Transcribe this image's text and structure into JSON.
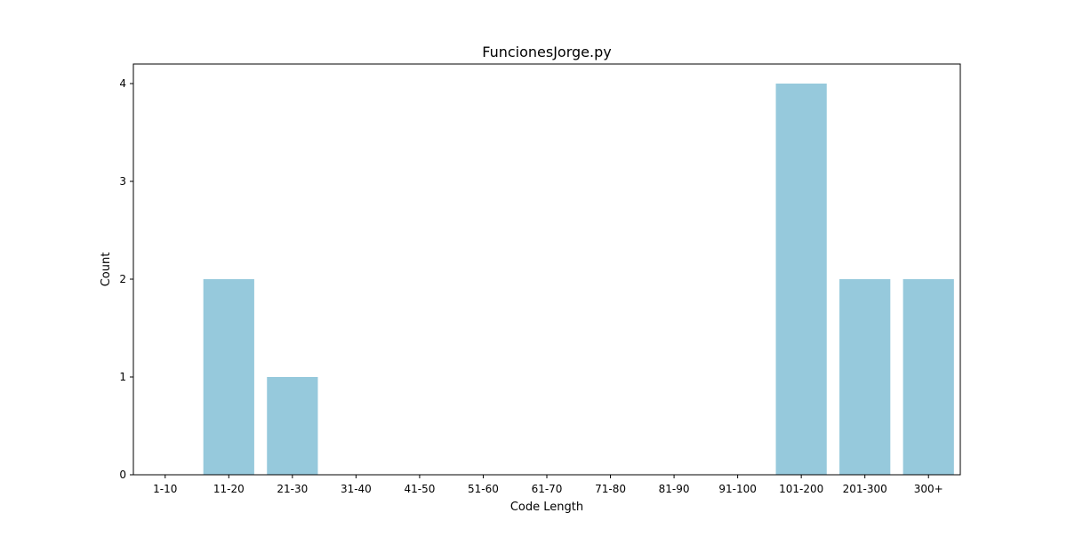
{
  "chart_data": {
    "type": "bar",
    "title": "FuncionesJorge.py",
    "xlabel": "Code Length",
    "ylabel": "Count",
    "categories": [
      "1-10",
      "11-20",
      "21-30",
      "31-40",
      "41-50",
      "51-60",
      "61-70",
      "71-80",
      "81-90",
      "91-100",
      "101-200",
      "201-300",
      "300+"
    ],
    "values": [
      0,
      2,
      1,
      0,
      0,
      0,
      0,
      0,
      0,
      0,
      4,
      2,
      2
    ],
    "ylim": [
      0,
      4.2
    ],
    "yticks": [
      "0",
      "1",
      "2",
      "3",
      "4"
    ],
    "grid": false,
    "bar_color": "#96c9dc"
  }
}
